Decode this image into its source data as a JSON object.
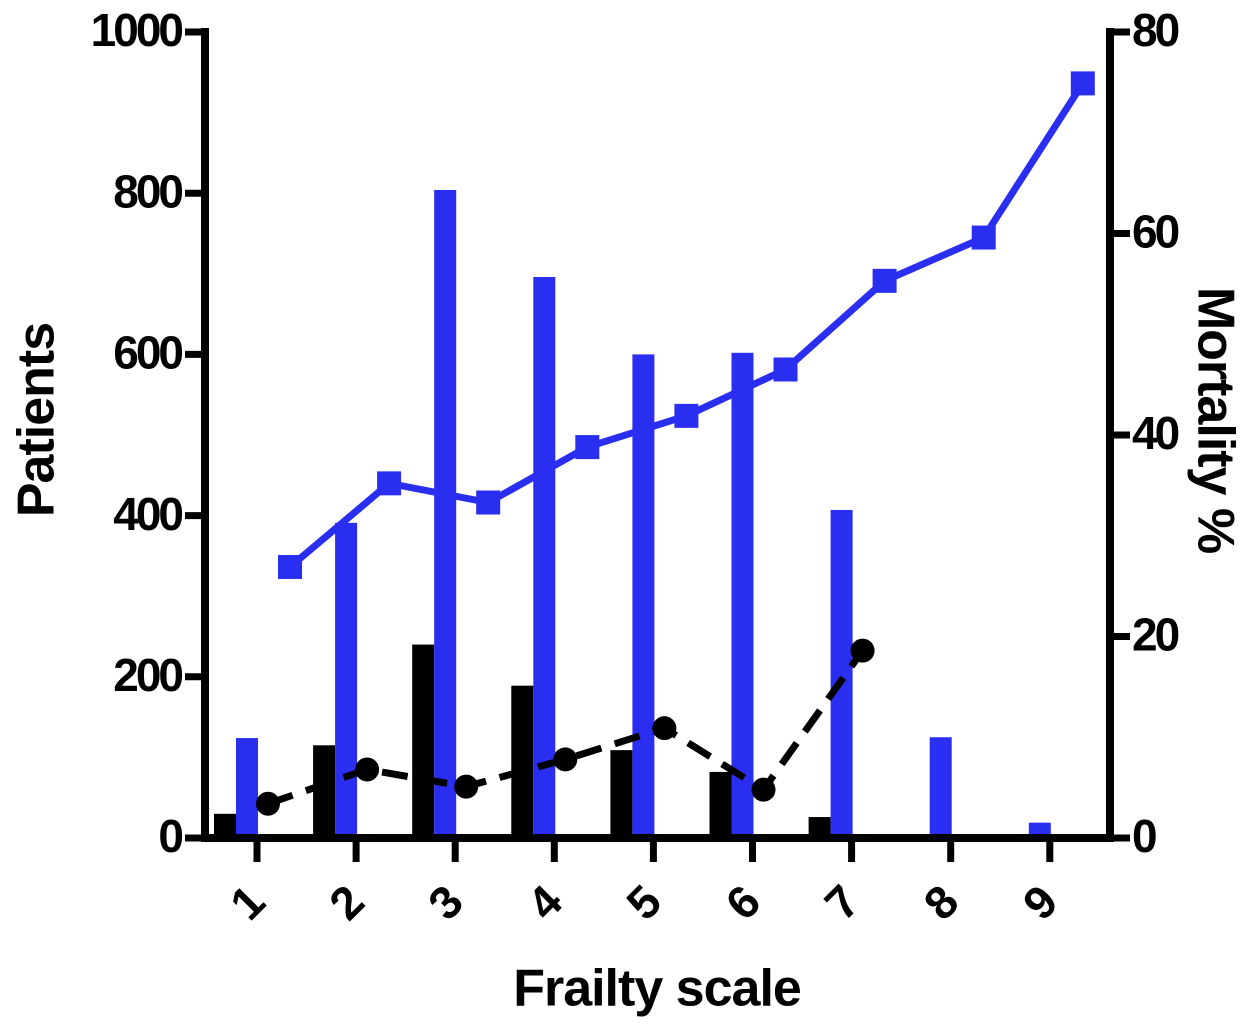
{
  "chart_data": {
    "type": "bar",
    "xlabel": "Frailty scale",
    "ylabel": "Patients",
    "y2label": "Mortality %",
    "categories": [
      "1",
      "2",
      "3",
      "4",
      "5",
      "6",
      "7",
      "8",
      "9"
    ],
    "ylim": [
      0,
      1000
    ],
    "yticks": [
      0,
      200,
      400,
      600,
      800,
      1000
    ],
    "y2lim": [
      0,
      80
    ],
    "y2ticks": [
      0,
      20,
      40,
      60,
      80
    ],
    "series": [
      {
        "type": "bar",
        "color": "#000000",
        "values": [
          30,
          115,
          240,
          189,
          109,
          82,
          26,
          0,
          0
        ]
      },
      {
        "type": "bar",
        "color": "#2a2ef0",
        "values": [
          124,
          391,
          804,
          696,
          600,
          602,
          407,
          125,
          19
        ]
      },
      {
        "type": "line",
        "axis": "y2",
        "color": "#000000",
        "dashed": true,
        "marker": "circle",
        "values": [
          3.4,
          6.8,
          5.1,
          7.8,
          10.9,
          4.8,
          18.6,
          null,
          null
        ]
      },
      {
        "type": "line",
        "axis": "y2",
        "color": "#2a2ef0",
        "dashed": false,
        "marker": "square",
        "values": [
          26.9,
          35.2,
          33.3,
          38.8,
          41.9,
          46.5,
          55.3,
          59.6,
          74.9
        ]
      }
    ]
  }
}
